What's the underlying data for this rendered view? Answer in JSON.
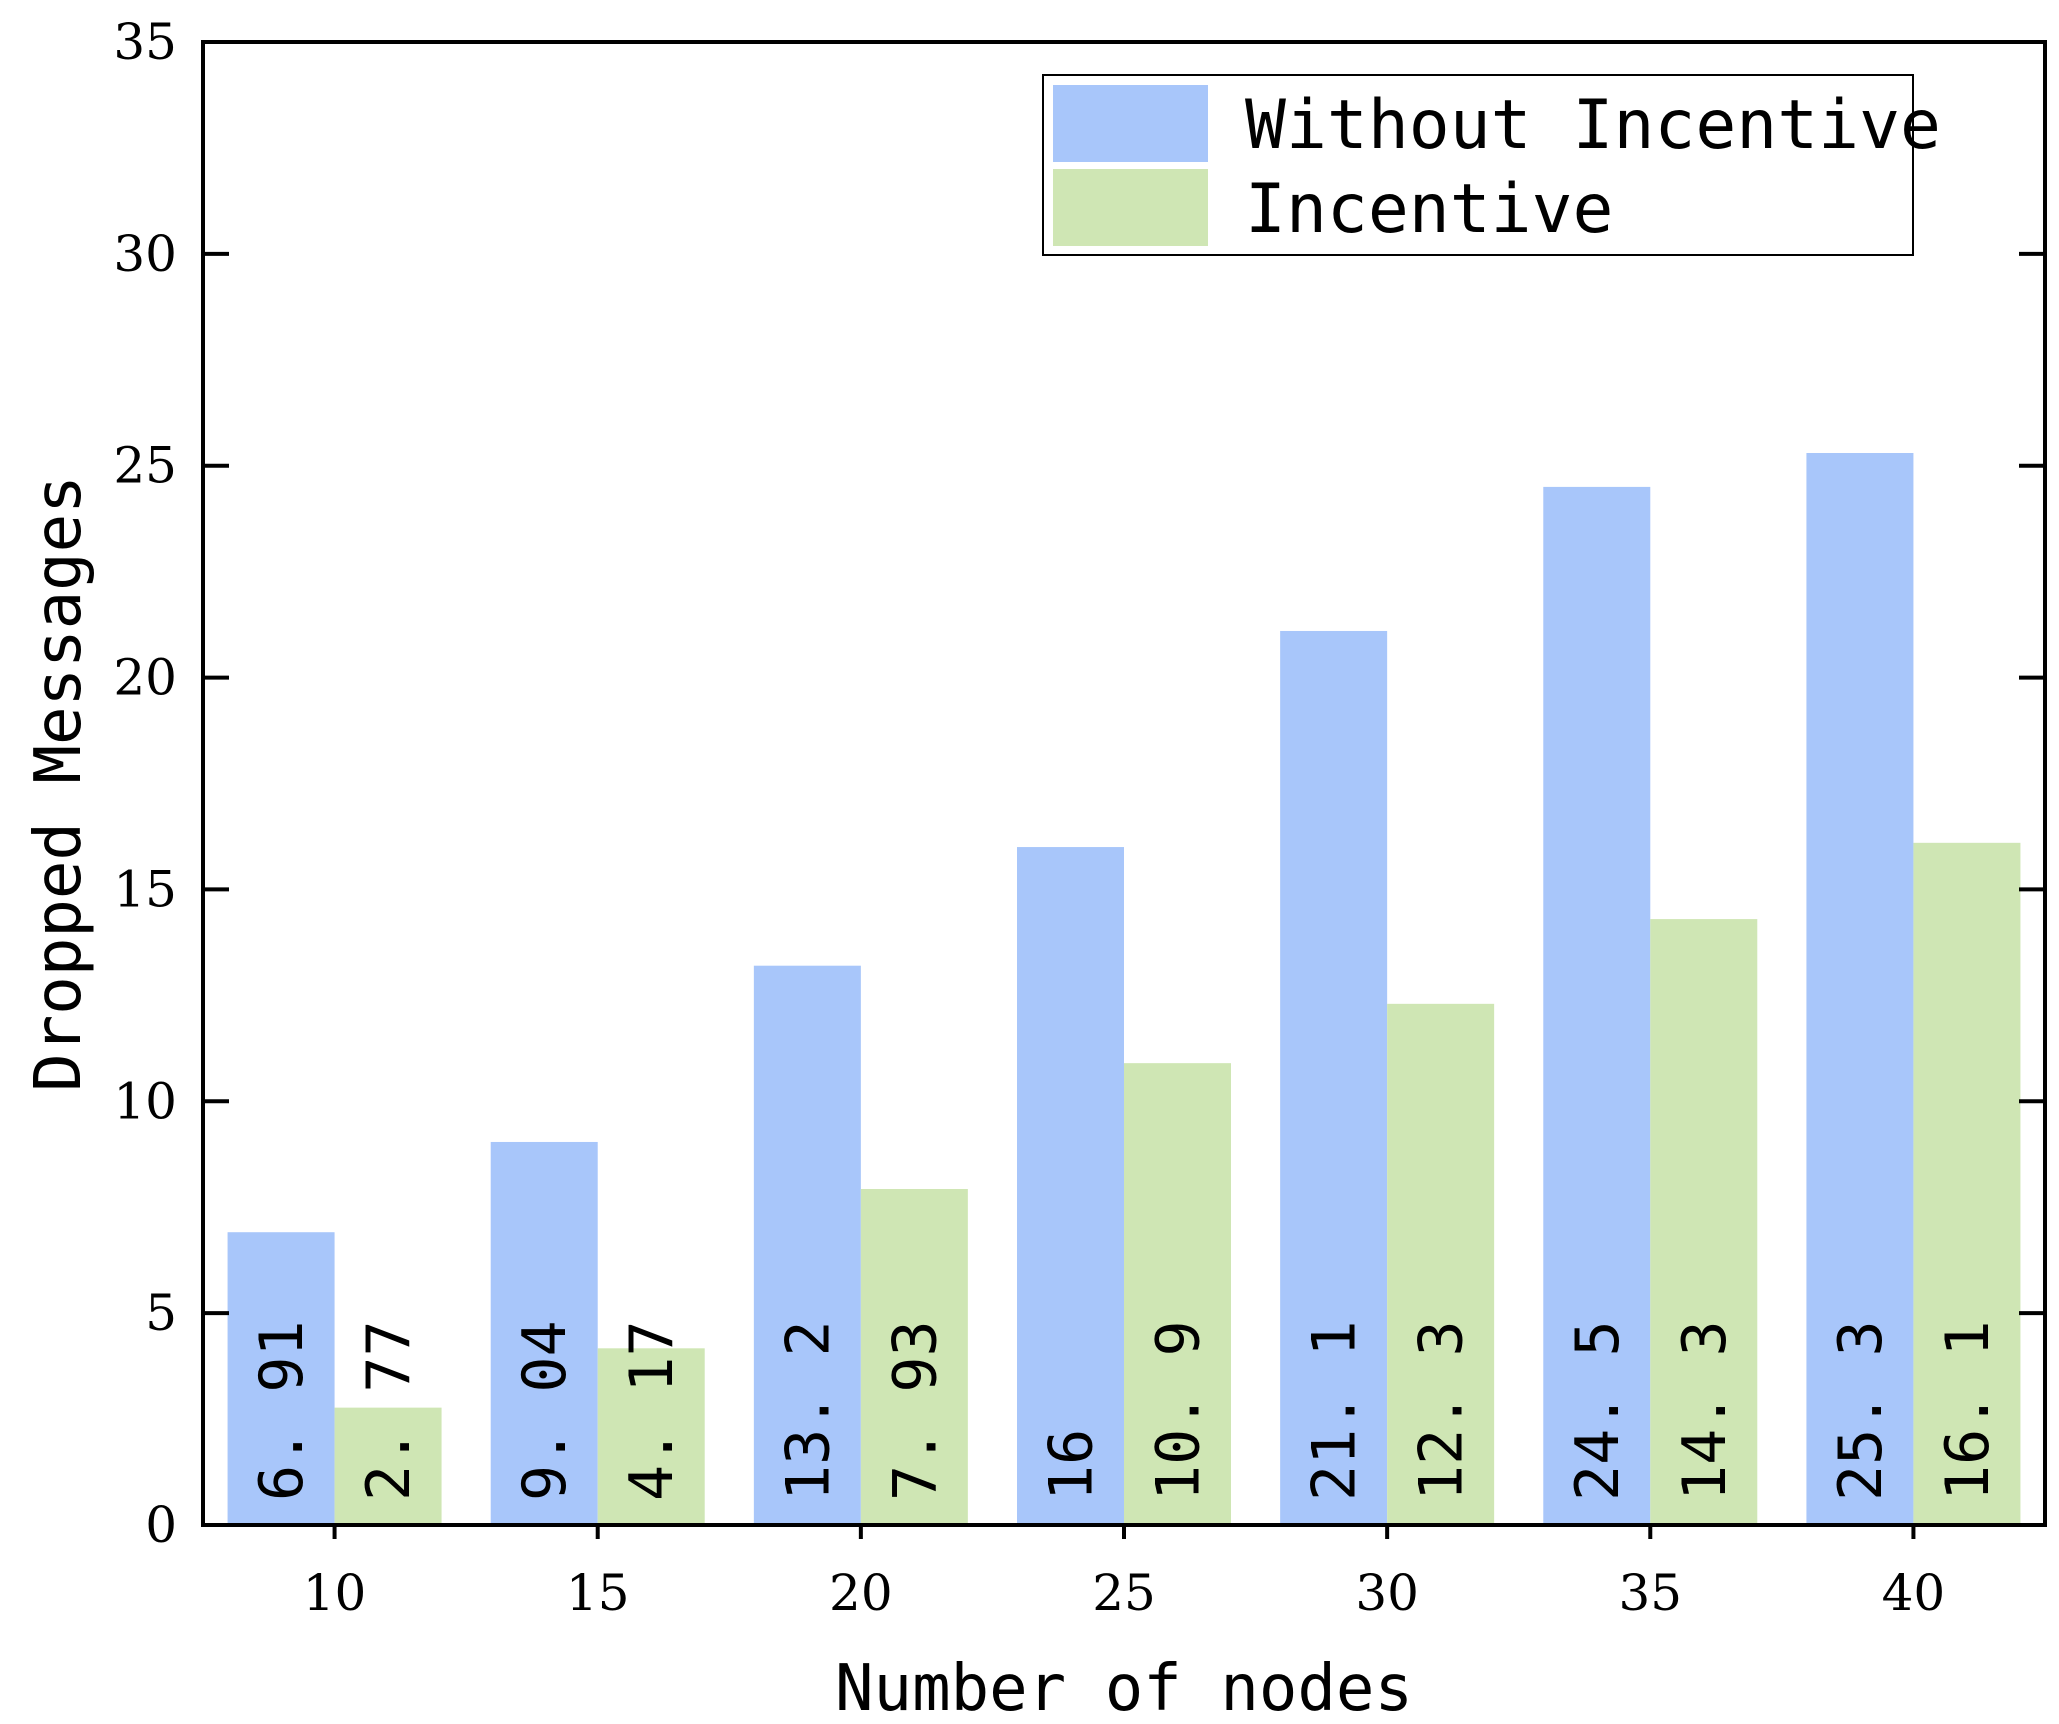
{
  "chart_data": {
    "type": "bar",
    "xlabel": "Number of nodes",
    "ylabel": "Dropped Messages",
    "categories": [
      "10",
      "15",
      "20",
      "25",
      "30",
      "35",
      "40"
    ],
    "series": [
      {
        "name": "Without Incentive",
        "color": "#a8c6fa",
        "values": [
          6.91,
          9.04,
          13.2,
          16,
          21.1,
          24.5,
          25.3
        ],
        "labels": [
          "6. 91",
          "9. 04",
          "13. 2",
          "16",
          "21. 1",
          "24. 5",
          "25. 3"
        ]
      },
      {
        "name": "Incentive",
        "color": "#cfe6b4",
        "values": [
          2.77,
          4.17,
          7.93,
          10.9,
          12.3,
          14.3,
          16.1
        ],
        "labels": [
          "2. 77",
          "4. 17",
          "7. 93",
          "10. 9",
          "12. 3",
          "14. 3",
          "16. 1"
        ]
      }
    ],
    "ylim": [
      0,
      35
    ],
    "yticks": [
      "0",
      "5",
      "10",
      "15",
      "20",
      "25",
      "30",
      "35"
    ],
    "legend_position": "top-right",
    "grid": false
  }
}
